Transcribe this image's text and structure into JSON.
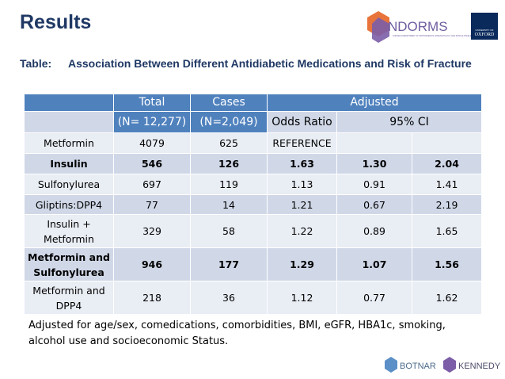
{
  "header": {
    "title": "Results",
    "logo_main": "NDORMS",
    "logo_sub": "NUFFIELD DEPARTMENT OF ORTHOPAEDICS, RHEUMATOLOGY AND MUSCULOSKELETAL SCIENCES",
    "oxford_small": "UNIVERSITY OF",
    "oxford": "OXFORD"
  },
  "caption": {
    "label": "Table:",
    "text": "Association Between Different Antidiabetic Medications and Risk of Fracture"
  },
  "table": {
    "header": {
      "total": "Total",
      "total_n": "(N= 12,277)",
      "cases": "Cases",
      "cases_n": "(N=2,049)",
      "adjusted": "Adjusted",
      "odds_ratio": "Odds Ratio",
      "ci": "95% CI"
    },
    "rows": [
      {
        "cells": [
          "Metformin",
          "4079",
          "625",
          "REFERENCE"
        ],
        "bold": false
      },
      {
        "cells": [
          "Insulin",
          "546",
          "126",
          "1.63",
          "1.30",
          "2.04"
        ],
        "bold": true
      },
      {
        "cells": [
          "Sulfonylurea",
          "697",
          "119",
          "1.13",
          "0.91",
          "1.41"
        ],
        "bold": false
      },
      {
        "cells": [
          "Gliptins:DPP4",
          "77",
          "14",
          "1.21",
          "0.67",
          "2.19"
        ],
        "bold": false
      },
      {
        "cells": [
          "Insulin + Metformin",
          "329",
          "58",
          "1.22",
          "0.89",
          "1.65"
        ],
        "bold": false
      },
      {
        "cells": [
          "Metformin and Sulfonylurea",
          "946",
          "177",
          "1.29",
          "1.07",
          "1.56"
        ],
        "bold": true
      },
      {
        "cells": [
          "Metformin and DPP4",
          "218",
          "36",
          "1.12",
          "0.77",
          "1.62"
        ],
        "bold": false
      }
    ]
  },
  "footnote": "Adjusted for age/sex, comedications, comorbidities, BMI, eGFR, HBA1c, smoking, alcohol use and socioeconomic Status.",
  "footer": {
    "botnar": "BOTNAR",
    "kennedy": "KENNEDY"
  }
}
